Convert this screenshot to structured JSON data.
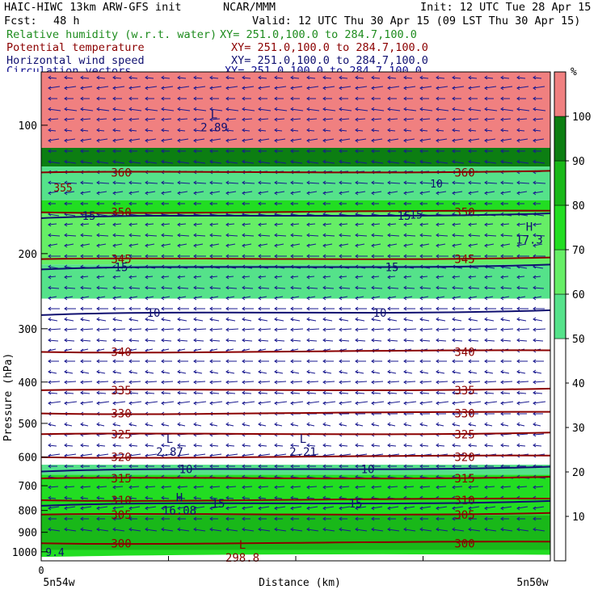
{
  "header": {
    "model": "HAIC-HIWC 13km ARW-GFS init",
    "org": "NCAR/MMM",
    "init": "Init: 12 UTC Tue 28 Apr 15",
    "fcst_label": "Fcst:",
    "fcst_value": "48 h",
    "valid": "Valid: 12 UTC Thu 30 Apr 15 (09 LST Thu 30 Apr 15)"
  },
  "fields": [
    {
      "name": "Relative humidity (w.r.t. water)",
      "xy": "XY= 251.0,100.0 to 284.7,100.0",
      "color": "#1e8c1e"
    },
    {
      "name": "Potential temperature",
      "xy": "XY= 251.0,100.0 to 284.7,100.0",
      "color": "#8b0000"
    },
    {
      "name": "Horizontal wind speed",
      "xy": "XY= 251.0,100.0 to 284.7,100.0",
      "color": "#101070"
    },
    {
      "name": "Circulation vectors",
      "xy": "XY= 251.0,100.0 to 284.7,100.0",
      "color": "#101090"
    }
  ],
  "chart_data": {
    "type": "heatmap",
    "ylabel": "Pressure (hPa)",
    "xlabel": "Distance (km)",
    "y_scale": "log",
    "y_reversed": true,
    "ylim": [
      1050,
      75
    ],
    "y_ticks": [
      100,
      200,
      300,
      400,
      500,
      600,
      700,
      800,
      900,
      1000
    ],
    "x_tick_first": "0",
    "x_left_label": "5n54w",
    "x_right_label": "5n50w",
    "grid": false,
    "colorbar": {
      "unit": "%",
      "placement": "right",
      "ticks": [
        10,
        20,
        30,
        40,
        50,
        60,
        70,
        80,
        90,
        100
      ],
      "bands": [
        {
          "from": 0,
          "to": 50,
          "color": "#ffffff"
        },
        {
          "from": 50,
          "to": 60,
          "color": "#55e28a"
        },
        {
          "from": 60,
          "to": 70,
          "color": "#66ee66"
        },
        {
          "from": 70,
          "to": 80,
          "color": "#22dd22"
        },
        {
          "from": 80,
          "to": 90,
          "color": "#19b819"
        },
        {
          "from": 90,
          "to": 100,
          "color": "#0c7e12"
        },
        {
          "from": 100,
          "to": 110,
          "color": "#f08080"
        }
      ]
    },
    "rh_layers": [
      {
        "p_top": 75,
        "p_bottom": 113,
        "rh": 105
      },
      {
        "p_top": 113,
        "p_bottom": 125,
        "rh": 92
      },
      {
        "p_top": 125,
        "p_bottom": 150,
        "rh": 55
      },
      {
        "p_top": 150,
        "p_bottom": 160,
        "rh": 72
      },
      {
        "p_top": 160,
        "p_bottom": 212,
        "rh": 65
      },
      {
        "p_top": 212,
        "p_bottom": 255,
        "rh": 55
      },
      {
        "p_top": 255,
        "p_bottom": 625,
        "rh": 35
      },
      {
        "p_top": 625,
        "p_bottom": 660,
        "rh": 55
      },
      {
        "p_top": 660,
        "p_bottom": 820,
        "rh": 75
      },
      {
        "p_top": 820,
        "p_bottom": 990,
        "rh": 85
      },
      {
        "p_top": 990,
        "p_bottom": 1030,
        "rh": 72
      }
    ],
    "theta_contours": [
      {
        "value": 360,
        "p": 129
      },
      {
        "value": 350,
        "p": 160
      },
      {
        "value": 345,
        "p": 206
      },
      {
        "value": 340,
        "p": 340
      },
      {
        "value": 335,
        "p": 418
      },
      {
        "value": 330,
        "p": 474
      },
      {
        "value": 325,
        "p": 530
      },
      {
        "value": 320,
        "p": 600
      },
      {
        "value": 315,
        "p": 673
      },
      {
        "value": 310,
        "p": 757
      },
      {
        "value": 305,
        "p": 818
      },
      {
        "value": 300,
        "p": 955
      }
    ],
    "wind_contours": [
      {
        "value": 15,
        "p": 163
      },
      {
        "value": 15,
        "p": 215
      },
      {
        "value": 10,
        "p": 275
      },
      {
        "value": 10,
        "p": 640
      },
      {
        "value": 15,
        "p": 770
      }
    ],
    "extrema": [
      {
        "kind": "L",
        "value": "2.89",
        "p": 98
      },
      {
        "kind": "H",
        "value": "17.3",
        "p": 180
      },
      {
        "kind": "L",
        "value": "2.87",
        "p": 565
      },
      {
        "kind": "L",
        "value": "2.21",
        "p": 565
      },
      {
        "kind": "H",
        "value": "16.08",
        "p": 775
      },
      {
        "kind": "L",
        "value": "298.8",
        "p": 1000
      }
    ],
    "edge_labels": [
      "355",
      "10",
      "15",
      "9.4"
    ]
  }
}
